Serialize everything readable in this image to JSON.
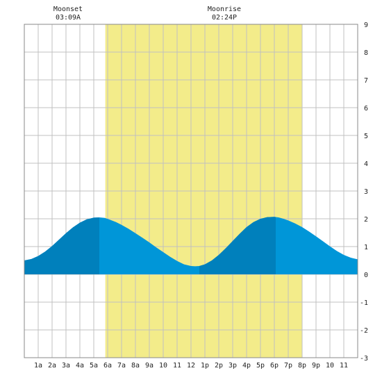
{
  "chart_data": {
    "type": "area",
    "title": "",
    "xlabel": "",
    "ylabel": "",
    "x_range_hours": [
      0,
      24
    ],
    "ylim": [
      -3,
      9
    ],
    "y_ticks": [
      -3,
      -2,
      -1,
      0,
      1,
      2,
      3,
      4,
      5,
      6,
      7,
      8,
      9
    ],
    "x_tick_labels": [
      "1a",
      "2a",
      "3a",
      "4a",
      "5a",
      "6a",
      "7a",
      "8a",
      "9a",
      "10",
      "11",
      "12",
      "1p",
      "2p",
      "3p",
      "4p",
      "5p",
      "6p",
      "7p",
      "8p",
      "9p",
      "10",
      "11"
    ],
    "grid": true,
    "daylight": {
      "start_hour": 5.83,
      "end_hour": 19.98,
      "color": "#f3ec8a"
    },
    "colors": {
      "water_light": "#0096d8",
      "water_dark": "#0080bc",
      "grid": "#c0c0c0",
      "border": "#888888"
    },
    "series": [
      {
        "hours": [
          0,
          0.5,
          1,
          1.5,
          2,
          2.5,
          3,
          3.5,
          4,
          4.5,
          5,
          5.4,
          5.8,
          6.2,
          6.6,
          7,
          7.5,
          8,
          8.5,
          9,
          9.5,
          10,
          10.5,
          11,
          11.5,
          12,
          12.3,
          12.6,
          13,
          13.5,
          14,
          14.5,
          15,
          15.5,
          16,
          16.5,
          17,
          17.5,
          18,
          18.3,
          18.6,
          19,
          19.5,
          20,
          20.5,
          21,
          21.5,
          22,
          22.5,
          23,
          23.5,
          24
        ],
        "values": [
          0.5,
          0.55,
          0.66,
          0.82,
          1.02,
          1.25,
          1.48,
          1.69,
          1.86,
          1.98,
          2.04,
          2.05,
          2.03,
          1.96,
          1.88,
          1.78,
          1.64,
          1.48,
          1.32,
          1.15,
          0.97,
          0.8,
          0.63,
          0.48,
          0.36,
          0.3,
          0.29,
          0.3,
          0.36,
          0.5,
          0.7,
          0.94,
          1.2,
          1.46,
          1.7,
          1.88,
          2.0,
          2.06,
          2.07,
          2.05,
          2.01,
          1.94,
          1.83,
          1.7,
          1.54,
          1.37,
          1.19,
          1.01,
          0.84,
          0.7,
          0.6,
          0.54
        ]
      }
    ],
    "dark_bands": [
      [
        0,
        5.4
      ],
      [
        12.6,
        18.1
      ]
    ],
    "annotations": [
      {
        "label": "Moonset",
        "time": "03:09A",
        "hour": 3.15
      },
      {
        "label": "Moonrise",
        "time": "02:24P",
        "hour": 14.4
      }
    ]
  }
}
